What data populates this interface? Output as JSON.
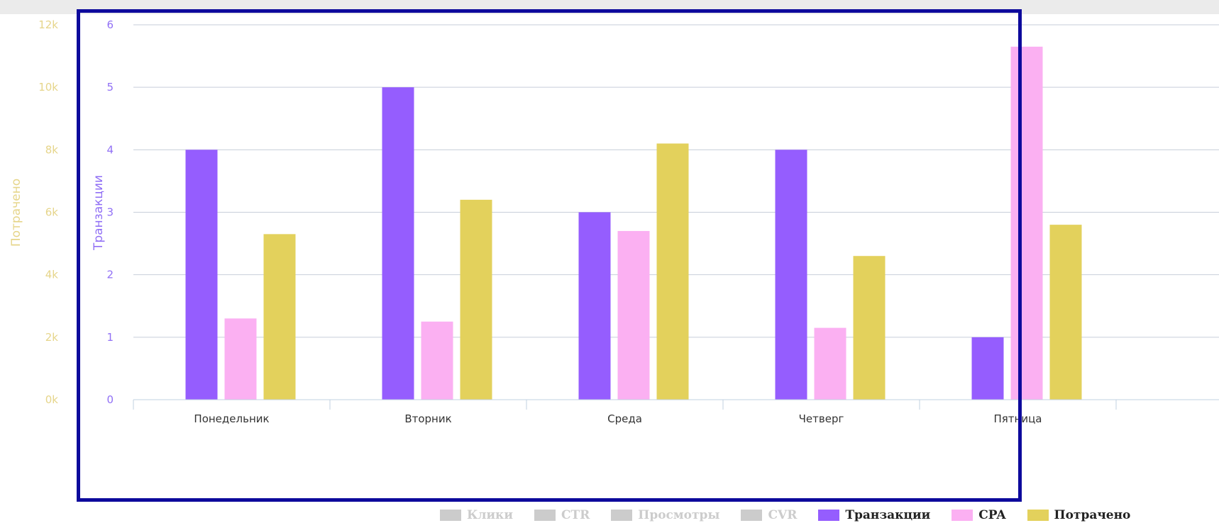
{
  "chart_data": {
    "type": "bar",
    "categories": [
      "Понедельник",
      "Вторник",
      "Среда",
      "Четверг",
      "Пятница"
    ],
    "series": [
      {
        "name": "Транзакции",
        "axis": "right_inner",
        "color": "#955dfe",
        "values": [
          4,
          5,
          3,
          4,
          1
        ]
      },
      {
        "name": "CPA",
        "axis": "left_outer",
        "color": "#fbb0f2",
        "values": [
          2600,
          2500,
          5400,
          2300,
          11300
        ]
      },
      {
        "name": "Потрачено",
        "axis": "left_outer",
        "color": "#e3d15c",
        "values": [
          5300,
          6400,
          8200,
          4600,
          5600
        ]
      }
    ],
    "axes": {
      "left_outer": {
        "title": "Потрачено",
        "color": "#e6d58a",
        "ticks": [
          "0k",
          "2k",
          "4k",
          "6k",
          "8k",
          "10k",
          "12k"
        ],
        "ylim": [
          0,
          12000
        ]
      },
      "right_inner": {
        "title": "Транзакции",
        "color": "#9170f5",
        "ticks": [
          "0",
          "1",
          "2",
          "3",
          "4",
          "5",
          "6"
        ],
        "ylim": [
          0,
          6
        ]
      }
    },
    "grid": true,
    "legend": {
      "placement": "bottom-right",
      "items": [
        {
          "label": "Клики",
          "color": "#cccccc",
          "active": false
        },
        {
          "label": "CTR",
          "color": "#cccccc",
          "active": false
        },
        {
          "label": "Просмотры",
          "color": "#cccccc",
          "active": false
        },
        {
          "label": "CVR",
          "color": "#cccccc",
          "active": false
        },
        {
          "label": "Транзакции",
          "color": "#955dfe",
          "active": true
        },
        {
          "label": "CPA",
          "color": "#fbb0f2",
          "active": true
        },
        {
          "label": "Потрачено",
          "color": "#e3d15c",
          "active": true
        }
      ]
    }
  }
}
